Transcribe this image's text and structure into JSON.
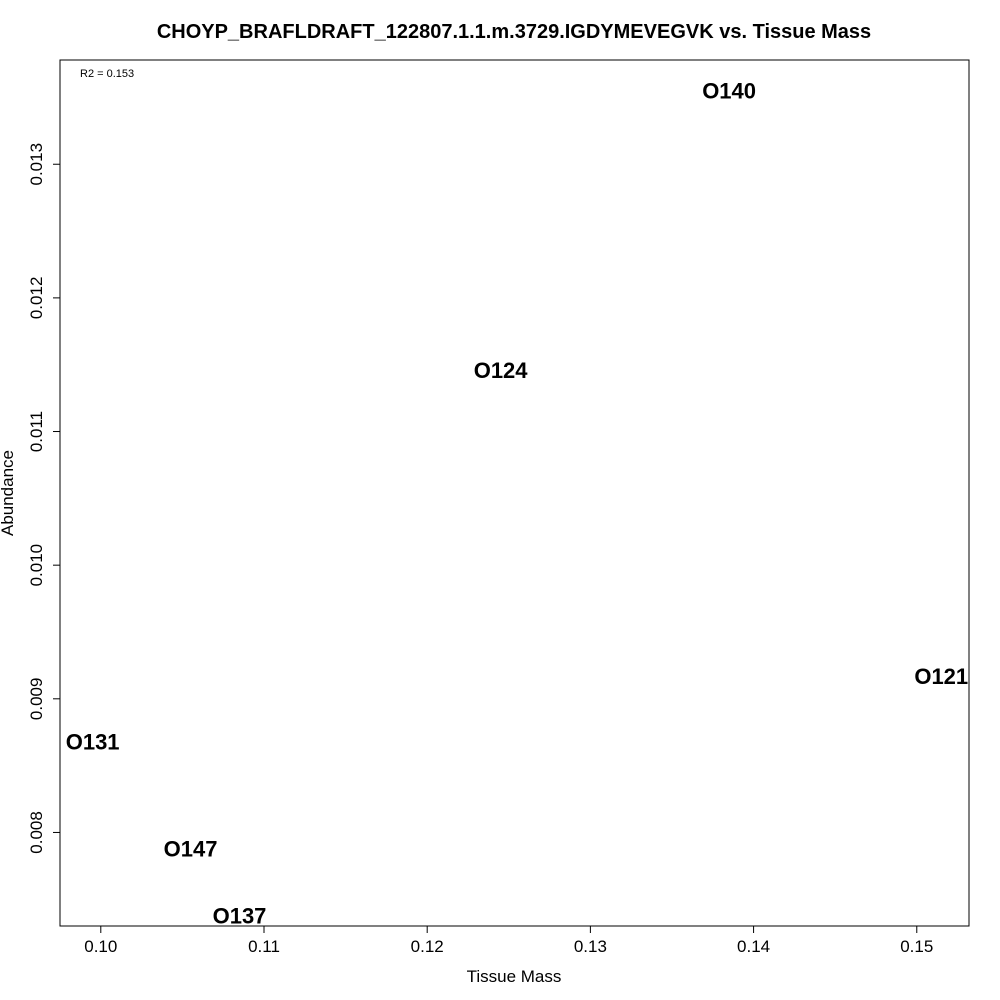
{
  "chart_data": {
    "type": "scatter",
    "title": "CHOYP_BRAFLDRAFT_122807.1.1.m.3729.IGDYMEVEGVK vs. Tissue Mass",
    "xlabel": "Tissue Mass",
    "ylabel": "Abundance",
    "annotation": "R2 = 0.153",
    "xlim": [
      0.0975,
      0.1532
    ],
    "ylim": [
      0.0073,
      0.01378
    ],
    "x_ticks": [
      0.1,
      0.11,
      0.12,
      0.13,
      0.14,
      0.15
    ],
    "x_tick_labels": [
      "0.10",
      "0.11",
      "0.12",
      "0.13",
      "0.14",
      "0.15"
    ],
    "y_ticks": [
      0.008,
      0.009,
      0.01,
      0.011,
      0.012,
      0.013
    ],
    "y_tick_labels": [
      "0.008",
      "0.009",
      "0.010",
      "0.011",
      "0.012",
      "0.013"
    ],
    "points": [
      {
        "label": "O140",
        "x": 0.1385,
        "y": 0.01355
      },
      {
        "label": "O124",
        "x": 0.1245,
        "y": 0.01146
      },
      {
        "label": "O121",
        "x": 0.1515,
        "y": 0.00917
      },
      {
        "label": "O131",
        "x": 0.0995,
        "y": 0.00868
      },
      {
        "label": "O147",
        "x": 0.1055,
        "y": 0.00788
      },
      {
        "label": "O137",
        "x": 0.1085,
        "y": 0.00738
      }
    ],
    "grid": false,
    "legend": "none"
  }
}
